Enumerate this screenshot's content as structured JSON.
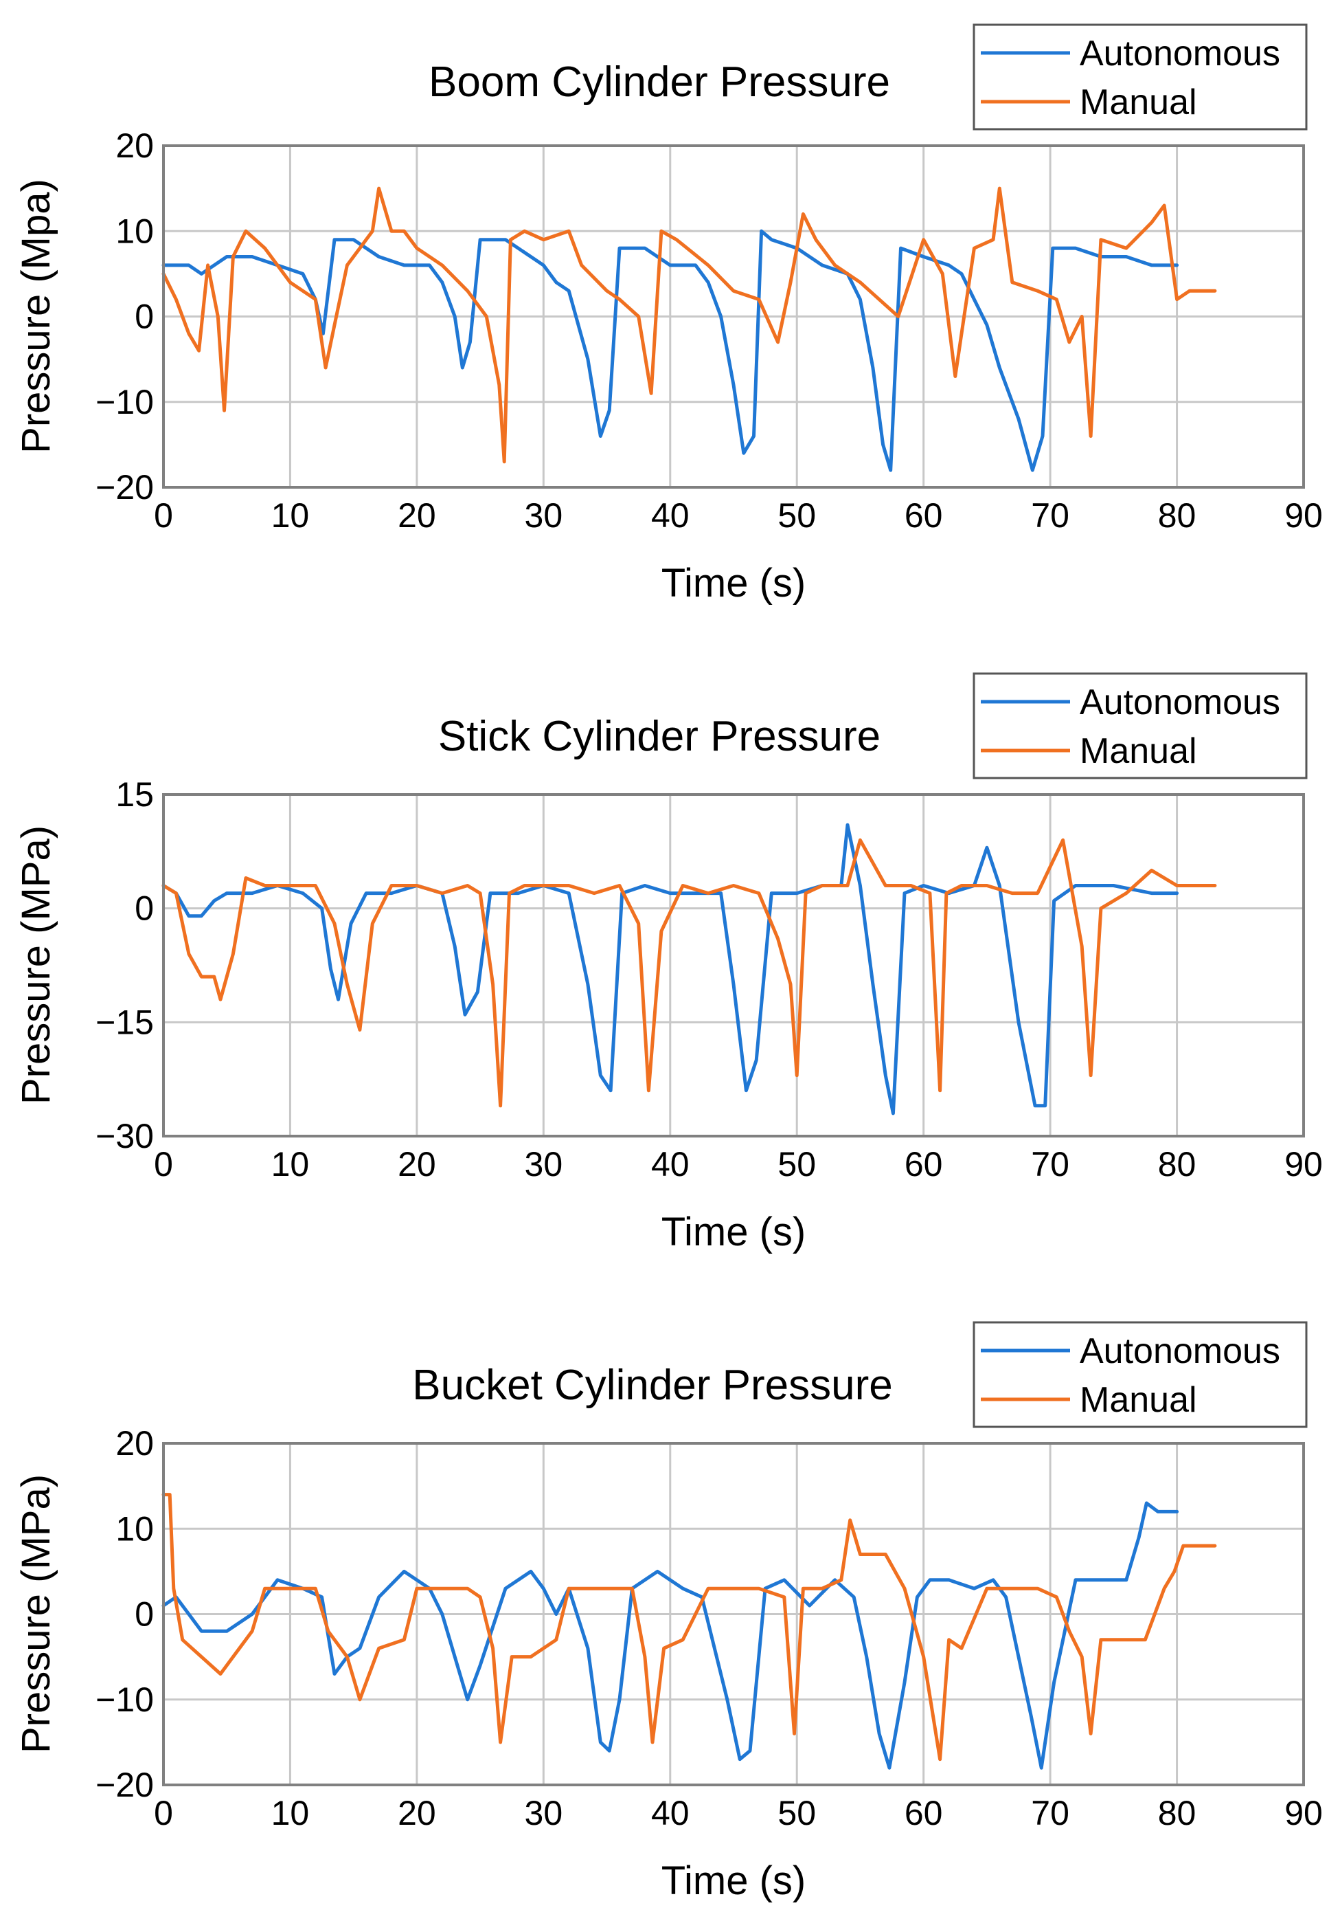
{
  "chart_data": [
    {
      "type": "line",
      "title": "Boom Cylinder Pressure",
      "xlabel": "Time (s)",
      "ylabel": "Pressure (Mpa)",
      "xlim": [
        0,
        90
      ],
      "ylim": [
        -20,
        20
      ],
      "xticks": [
        0,
        10,
        20,
        30,
        40,
        50,
        60,
        70,
        80,
        90
      ],
      "yticks": [
        20,
        10,
        0,
        -10,
        -20
      ],
      "grid": true,
      "legend": "top-right",
      "series": [
        {
          "name": "Autonomous",
          "color": "#1f77d4",
          "x": [
            0,
            2,
            3,
            5,
            7,
            9,
            11,
            12,
            12.6,
            13.5,
            15,
            17,
            19,
            21,
            22,
            23,
            23.6,
            24.2,
            25,
            27,
            30,
            31,
            32,
            33.5,
            34.5,
            35.2,
            36,
            38,
            40,
            42,
            43,
            44,
            45,
            45.8,
            46.6,
            47.2,
            48,
            50,
            52,
            54,
            55,
            56,
            56.8,
            57.4,
            58.2,
            60,
            62,
            63,
            64,
            65,
            66,
            67.5,
            68.6,
            69.4,
            70.2,
            72,
            74,
            76,
            78,
            80
          ],
          "y": [
            6,
            6,
            5,
            7,
            7,
            6,
            5,
            2,
            -2,
            9,
            9,
            7,
            6,
            6,
            4,
            0,
            -6,
            -3,
            9,
            9,
            6,
            4,
            3,
            -5,
            -14,
            -11,
            8,
            8,
            6,
            6,
            4,
            0,
            -8,
            -16,
            -14,
            10,
            9,
            8,
            6,
            5,
            2,
            -6,
            -15,
            -18,
            8,
            7,
            6,
            5,
            2,
            -1,
            -6,
            -12,
            -18,
            -14,
            8,
            8,
            7,
            7,
            6,
            6
          ]
        },
        {
          "name": "Manual",
          "color": "#f07020",
          "x": [
            0,
            1,
            2,
            2.8,
            3.5,
            4.3,
            4.8,
            5.5,
            6.5,
            8,
            10,
            12,
            12.8,
            13.5,
            14.5,
            15.5,
            16.5,
            17,
            18,
            19,
            20,
            22,
            24,
            25.5,
            26.5,
            26.9,
            27.4,
            28.5,
            30,
            32,
            33,
            35,
            36,
            37.5,
            38.5,
            39.3,
            40.5,
            43,
            45,
            47,
            48.5,
            49.5,
            50.5,
            51.5,
            53,
            55,
            56.5,
            58,
            60,
            61.5,
            62.5,
            64,
            65.5,
            66,
            67,
            69,
            70.5,
            71.5,
            72.5,
            73.2,
            74,
            76,
            78,
            79,
            80,
            81,
            82,
            83
          ],
          "y": [
            5,
            2,
            -2,
            -4,
            6,
            0,
            -11,
            7,
            10,
            8,
            4,
            2,
            -6,
            -1,
            6,
            8,
            10,
            15,
            10,
            10,
            8,
            6,
            3,
            0,
            -8,
            -17,
            9,
            10,
            9,
            10,
            6,
            3,
            2,
            0,
            -9,
            10,
            9,
            6,
            3,
            2,
            -3,
            4,
            12,
            9,
            6,
            4,
            2,
            0,
            9,
            5,
            -7,
            8,
            9,
            15,
            4,
            3,
            2,
            -3,
            0,
            -14,
            9,
            8,
            11,
            13,
            2,
            3,
            3,
            3
          ]
        }
      ]
    },
    {
      "type": "line",
      "title": "Stick Cylinder Pressure",
      "xlabel": "Time (s)",
      "ylabel": "Pressure (MPa)",
      "xlim": [
        0,
        90
      ],
      "ylim": [
        -30,
        15
      ],
      "xticks": [
        0,
        10,
        20,
        30,
        40,
        50,
        60,
        70,
        80,
        90
      ],
      "yticks": [
        15,
        0,
        -15,
        -30
      ],
      "grid": true,
      "legend": "top-right",
      "series": [
        {
          "name": "Autonomous",
          "color": "#1f77d4",
          "x": [
            0,
            1,
            2,
            3,
            4,
            5,
            7,
            9,
            11,
            12.5,
            13.2,
            13.8,
            14.8,
            16,
            18,
            20,
            22,
            23,
            23.8,
            24.8,
            25.8,
            28,
            30,
            32,
            33.5,
            34.5,
            35.3,
            36.2,
            38,
            40,
            42,
            44,
            45,
            46,
            46.8,
            48,
            50,
            52,
            53.5,
            54,
            55,
            56,
            57,
            57.6,
            58.5,
            60,
            62,
            64,
            65,
            66,
            67.5,
            68.8,
            69.6,
            70.3,
            72,
            75,
            78,
            80
          ],
          "y": [
            3,
            2,
            -1,
            -1,
            1,
            2,
            2,
            3,
            2,
            0,
            -8,
            -12,
            -2,
            2,
            2,
            3,
            2,
            -5,
            -14,
            -11,
            2,
            2,
            3,
            2,
            -10,
            -22,
            -24,
            2,
            3,
            2,
            2,
            2,
            -10,
            -24,
            -20,
            2,
            2,
            3,
            3,
            11,
            3,
            -10,
            -22,
            -27,
            2,
            3,
            2,
            3,
            8,
            3,
            -15,
            -26,
            -26,
            1,
            3,
            3,
            2,
            2
          ]
        },
        {
          "name": "Manual",
          "color": "#f07020",
          "x": [
            0,
            1,
            2,
            3,
            4,
            4.5,
            5.5,
            6.5,
            8,
            10,
            12,
            13.5,
            14.5,
            15.5,
            16.5,
            18,
            20,
            22,
            24,
            25,
            26,
            26.6,
            27.3,
            28.5,
            30,
            32,
            34,
            36,
            37.5,
            38.3,
            39.3,
            41,
            43,
            45,
            47,
            48.5,
            49.5,
            50,
            50.7,
            52,
            54,
            55,
            57,
            59,
            60.5,
            61.3,
            61.8,
            63,
            65,
            67,
            69,
            71,
            72.5,
            73.2,
            74,
            76,
            78,
            80,
            82,
            83
          ],
          "y": [
            3,
            2,
            -6,
            -9,
            -9,
            -12,
            -6,
            4,
            3,
            3,
            3,
            -2,
            -10,
            -16,
            -2,
            3,
            3,
            2,
            3,
            2,
            -10,
            -26,
            2,
            3,
            3,
            3,
            2,
            3,
            -2,
            -24,
            -3,
            3,
            2,
            3,
            2,
            -4,
            -10,
            -22,
            2,
            3,
            3,
            9,
            3,
            3,
            2,
            -24,
            2,
            3,
            3,
            2,
            2,
            9,
            -5,
            -22,
            0,
            2,
            5,
            3,
            3,
            3
          ]
        }
      ]
    },
    {
      "type": "line",
      "title": "Bucket Cylinder Pressure",
      "xlabel": "Time (s)",
      "ylabel": "Pressure (MPa)",
      "xlim": [
        0,
        90
      ],
      "ylim": [
        -20,
        20
      ],
      "xticks": [
        0,
        10,
        20,
        30,
        40,
        50,
        60,
        70,
        80,
        90
      ],
      "yticks": [
        20,
        10,
        0,
        -10,
        -20
      ],
      "grid": true,
      "legend": "top-right",
      "series": [
        {
          "name": "Autonomous",
          "color": "#1f77d4",
          "x": [
            0,
            1,
            2,
            3,
            5,
            7,
            9,
            11,
            12.5,
            13.5,
            14.5,
            15.5,
            17,
            19,
            21,
            22,
            23,
            24,
            25,
            27,
            29,
            30,
            31,
            32,
            33.5,
            34.5,
            35.2,
            36,
            37,
            39,
            41,
            42.5,
            43.5,
            44.5,
            45.5,
            46.3,
            47.5,
            49,
            51,
            53,
            54.5,
            55.5,
            56.5,
            57.3,
            58.5,
            59.5,
            60.5,
            62,
            64,
            65.5,
            66.5,
            67.5,
            68.5,
            69.3,
            70.3,
            72,
            74,
            76,
            77,
            77.6,
            78.5,
            80
          ],
          "y": [
            1,
            2,
            0,
            -2,
            -2,
            0,
            4,
            3,
            2,
            -7,
            -5,
            -4,
            2,
            5,
            3,
            0,
            -5,
            -10,
            -6,
            3,
            5,
            3,
            0,
            3,
            -4,
            -15,
            -16,
            -10,
            3,
            5,
            3,
            2,
            -4,
            -10,
            -17,
            -16,
            3,
            4,
            1,
            4,
            2,
            -5,
            -14,
            -18,
            -8,
            2,
            4,
            4,
            3,
            4,
            2,
            -5,
            -12,
            -18,
            -8,
            4,
            4,
            4,
            9,
            13,
            12,
            12
          ]
        },
        {
          "name": "Manual",
          "color": "#f07020",
          "x": [
            0,
            0.5,
            0.8,
            1.5,
            3,
            4.5,
            5.5,
            7,
            8,
            10,
            12,
            13,
            14.5,
            15.5,
            17,
            19,
            20,
            22,
            24,
            25,
            26,
            26.6,
            27.5,
            29,
            31,
            32,
            33,
            35,
            37,
            38,
            38.6,
            39.5,
            41,
            43,
            45,
            47,
            49,
            49.8,
            50.5,
            52,
            53.5,
            54.2,
            55,
            57,
            58.5,
            60,
            61.3,
            62,
            63,
            65,
            67,
            69,
            70.5,
            71.5,
            72.5,
            73.2,
            74,
            76,
            77.5,
            79,
            79.8,
            80.5,
            82,
            83
          ],
          "y": [
            14,
            14,
            3,
            -3,
            -5,
            -7,
            -5,
            -2,
            3,
            3,
            3,
            -2,
            -5,
            -10,
            -4,
            -3,
            3,
            3,
            3,
            2,
            -4,
            -15,
            -5,
            -5,
            -3,
            3,
            3,
            3,
            3,
            -5,
            -15,
            -4,
            -3,
            3,
            3,
            3,
            2,
            -14,
            3,
            3,
            4,
            11,
            7,
            7,
            3,
            -5,
            -17,
            -3,
            -4,
            3,
            3,
            3,
            2,
            -2,
            -5,
            -14,
            -3,
            -3,
            -3,
            3,
            5,
            8,
            8,
            8
          ]
        }
      ]
    }
  ]
}
